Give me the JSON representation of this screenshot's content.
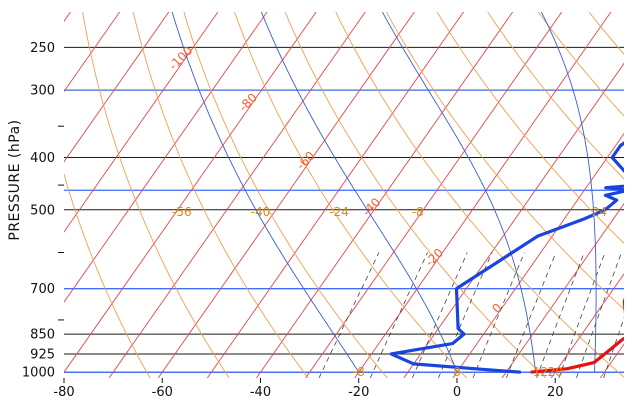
{
  "chart_data": {
    "type": "line",
    "title": "",
    "xlabel": "",
    "ylabel": "PRESSURE (hPa)",
    "xlim": [
      -80,
      34
    ],
    "ylim": [
      1025,
      215
    ],
    "y_scale": "log",
    "x_ticks": [
      -80,
      -60,
      -40,
      -20,
      0,
      20
    ],
    "y_ticks": [
      250,
      300,
      400,
      500,
      700,
      850,
      925,
      1000
    ],
    "isotherm_labels": [
      {
        "value": "-100",
        "T": -100,
        "p": 265
      },
      {
        "value": "-80",
        "T": -80,
        "p": 320
      },
      {
        "value": "-60",
        "T": -60,
        "p": 410
      },
      {
        "value": "-40",
        "T": -40,
        "p": 500
      },
      {
        "value": "-20",
        "T": -20,
        "p": 620
      },
      {
        "value": "0",
        "T": 0,
        "p": 770
      }
    ],
    "adiabat_labels": [
      {
        "value": "-56",
        "T": -56,
        "p": 505
      },
      {
        "value": "-40",
        "T": -40,
        "p": 505
      },
      {
        "value": "-24",
        "T": -24,
        "p": 505
      },
      {
        "value": "-8",
        "T": -8,
        "p": 505
      },
      {
        "value": "24",
        "T": 29,
        "p": 505
      },
      {
        "value": "-8",
        "T": -20,
        "p": 1000
      },
      {
        "value": "8",
        "T": 0,
        "p": 1000
      },
      {
        "value": "12",
        "T": 17,
        "p": 1000
      },
      {
        "value": "20",
        "T": 20,
        "p": 1000
      }
    ],
    "series": [
      {
        "color": "#e81010",
        "points": [
          {
            "p": 1000,
            "T": 15
          },
          {
            "p": 985,
            "T": 22
          },
          {
            "p": 960,
            "T": 26.5
          },
          {
            "p": 925,
            "T": 27.5
          },
          {
            "p": 870,
            "T": 29
          },
          {
            "p": 850,
            "T": 30
          },
          {
            "p": 800,
            "T": 27
          },
          {
            "p": 740,
            "T": 24
          },
          {
            "p": 700,
            "T": 23
          },
          {
            "p": 600,
            "T": 22
          },
          {
            "p": 500,
            "T": 22
          },
          {
            "p": 460,
            "T": 21
          },
          {
            "p": 400,
            "T": 21
          },
          {
            "p": 350,
            "T": 20
          },
          {
            "p": 300,
            "T": 19
          },
          {
            "p": 280,
            "T": 19
          },
          {
            "p": 250,
            "T": 18
          },
          {
            "p": 230,
            "T": 18
          },
          {
            "p": 215,
            "T": 20
          }
        ]
      },
      {
        "color": "#1a44e0",
        "points": [
          {
            "p": 1000,
            "T": 13
          },
          {
            "p": 985,
            "T": 3
          },
          {
            "p": 965,
            "T": -10
          },
          {
            "p": 925,
            "T": -16
          },
          {
            "p": 885,
            "T": -5
          },
          {
            "p": 850,
            "T": -4
          },
          {
            "p": 830,
            "T": -6
          },
          {
            "p": 700,
            "T": -12
          },
          {
            "p": 560,
            "T": -3
          },
          {
            "p": 520,
            "T": 4
          },
          {
            "p": 500,
            "T": 7
          },
          {
            "p": 480,
            "T": 8
          },
          {
            "p": 470,
            "T": 5
          },
          {
            "p": 465,
            "T": 7
          },
          {
            "p": 460,
            "T": 9
          },
          {
            "p": 455,
            "T": 4
          },
          {
            "p": 450,
            "T": 10
          },
          {
            "p": 400,
            "T": 1
          },
          {
            "p": 380,
            "T": 1
          },
          {
            "p": 340,
            "T": 5
          },
          {
            "p": 310,
            "T": 12
          },
          {
            "p": 300,
            "T": 13
          },
          {
            "p": 250,
            "T": 13
          },
          {
            "p": 215,
            "T": 14
          }
        ]
      }
    ],
    "grid": true
  }
}
